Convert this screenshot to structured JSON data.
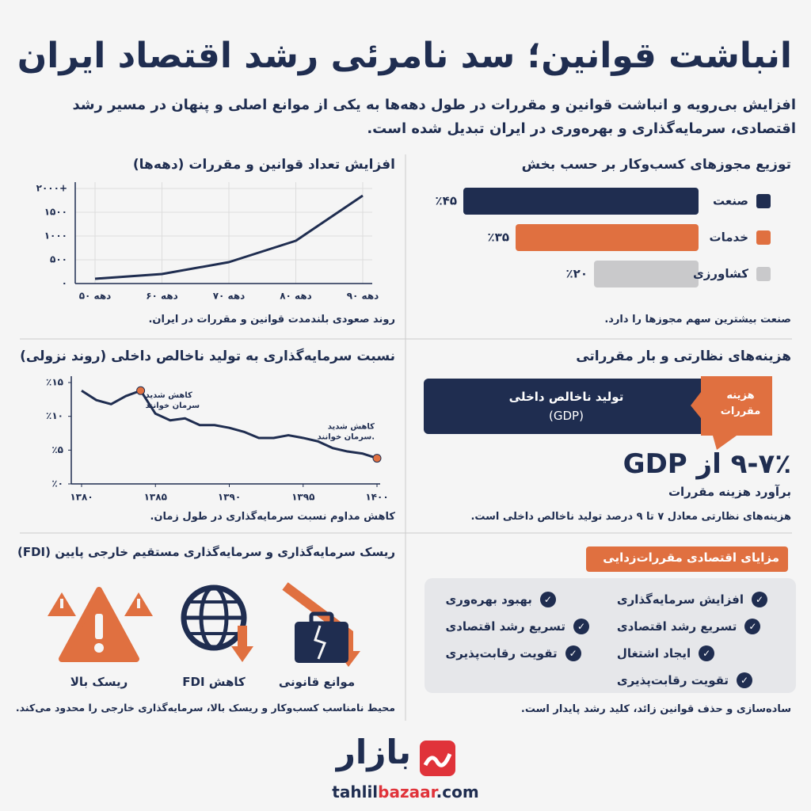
{
  "title": "انباشت قوانین؛ سد نامرئی رشد اقتصاد ایران",
  "subtitle": "افزایش بی‌رویه و انباشت قوانین و مقررات در طول دهه‌ها به یکی از موانع اصلی و پنهان در مسیر رشد اقتصادی، سرمایه‌گذاری و بهره‌وری در ایران تبدیل شده است.",
  "chart_data": [
    {
      "type": "line",
      "title": "افزایش تعداد قوانین و مقررات (دهه‌ها)",
      "caption": "روند صعودی بلندمدت قوانین و مقررات در ایران.",
      "categories": [
        "دهه ۵۰",
        "دهه ۶۰",
        "دهه ۷۰",
        "دهه ۸۰",
        "دهه ۹۰"
      ],
      "values": [
        100,
        200,
        450,
        900,
        1850
      ],
      "color": "#1f2d50",
      "ylim": [
        0,
        2000
      ],
      "yticks": [
        {
          "value": 0,
          "label": "۰"
        },
        {
          "value": 500,
          "label": "۵۰۰"
        },
        {
          "value": 1000,
          "label": "۱۰۰۰"
        },
        {
          "value": 1500,
          "label": "۱۵۰۰"
        },
        {
          "value": 2000,
          "label": "۲۰۰۰+"
        }
      ],
      "grid": true
    },
    {
      "type": "bar",
      "title": "توزیع مجوزهای کسب‌وکار بر حسب بخش",
      "caption": "صنعت بیشترین سهم مجوزها را دارد.",
      "categories": [
        "صنعت",
        "خدمات",
        "کشاورزی"
      ],
      "values": [
        45,
        35,
        20
      ],
      "value_labels": [
        "٪۴۵",
        "٪۳۵",
        "٪۲۰"
      ],
      "colors": [
        "#1f2d50",
        "#e07040",
        "#c9c9cb"
      ]
    },
    {
      "type": "line",
      "title": "نسبت سرمایه‌گذاری به تولید ناخالص داخلی (روند نزولی)",
      "caption": "کاهش مداوم نسبت سرمایه‌گذاری در طول زمان.",
      "x": [
        1380,
        1381,
        1382,
        1383,
        1384,
        1385,
        1386,
        1387,
        1388,
        1389,
        1390,
        1391,
        1392,
        1393,
        1394,
        1395,
        1396,
        1397,
        1398,
        1399,
        1400
      ],
      "values": [
        13.8,
        12.4,
        11.8,
        13.0,
        13.8,
        10.4,
        9.4,
        9.7,
        8.7,
        8.7,
        8.3,
        7.7,
        6.8,
        6.8,
        7.2,
        6.8,
        6.3,
        5.3,
        4.8,
        4.5,
        3.8
      ],
      "color": "#1f2d50",
      "xlim": [
        1380,
        1400
      ],
      "xticks": [
        {
          "value": 1380,
          "label": "۱۳۸۰"
        },
        {
          "value": 1385,
          "label": "۱۳۸۵"
        },
        {
          "value": 1390,
          "label": "۱۳۹۰"
        },
        {
          "value": 1395,
          "label": "۱۳۹۵"
        },
        {
          "value": 1400,
          "label": "۱۴۰۰"
        }
      ],
      "ylim": [
        0,
        15
      ],
      "yticks": [
        {
          "value": 0,
          "label": "٪۰"
        },
        {
          "value": 5,
          "label": "٪۵"
        },
        {
          "value": 10,
          "label": "٪۱۰"
        },
        {
          "value": 15,
          "label": "٪۱۵"
        }
      ],
      "grid": false,
      "annotations": [
        {
          "x": 1384,
          "lines": [
            "کاهش شدید",
            "سرمان خوانند"
          ]
        },
        {
          "x": 1400,
          "lines": [
            "کاهش شدید",
            "سرمان خوانند."
          ]
        }
      ],
      "marker_color": "#e07040"
    }
  ],
  "costs": {
    "title": "هزینه‌های نظارتی و بار مقرراتی",
    "bar_label": [
      "تولید ناخالص داخلی",
      "(GDP)"
    ],
    "callout": "هزینه مقررات",
    "big": "۹-۷٪ از GDP",
    "big_sub": "برآورد هزینه مقررات",
    "caption": "هزینه‌های نظارتی معادل ۷ تا ۹ درصد تولید ناخالص داخلی است."
  },
  "risk": {
    "title": "ریسک سرمایه‌گذاری و سرمایه‌گذاری مستقیم خارجی پایین (FDI)",
    "items": [
      "موانع قانونی",
      "کاهش FDI",
      "ریسک بالا"
    ],
    "caption": "محیط نامناسب کسب‌وکار و ریسک بالا، سرمایه‌گذاری خارجی را محدود می‌کند."
  },
  "benefits": {
    "title": "مزایای اقتصادی مقررات‌زدایی",
    "right": [
      "افزایش سرمایه‌گذاری",
      "تسریع رشد اقتصادی",
      "ایجاد اشتغال",
      "تقویت رقابت‌پذیری"
    ],
    "left": [
      "بهبود بهره‌وری",
      "تسریع رشد اقتصادی",
      "تقویت رقابت‌پذیری"
    ],
    "caption": "ساده‌سازی و حذف قوانین زائد، کلید رشد پایدار است."
  },
  "footer": {
    "brand": "بازار",
    "url": [
      "tahlil",
      "bazaar",
      ".com"
    ]
  }
}
